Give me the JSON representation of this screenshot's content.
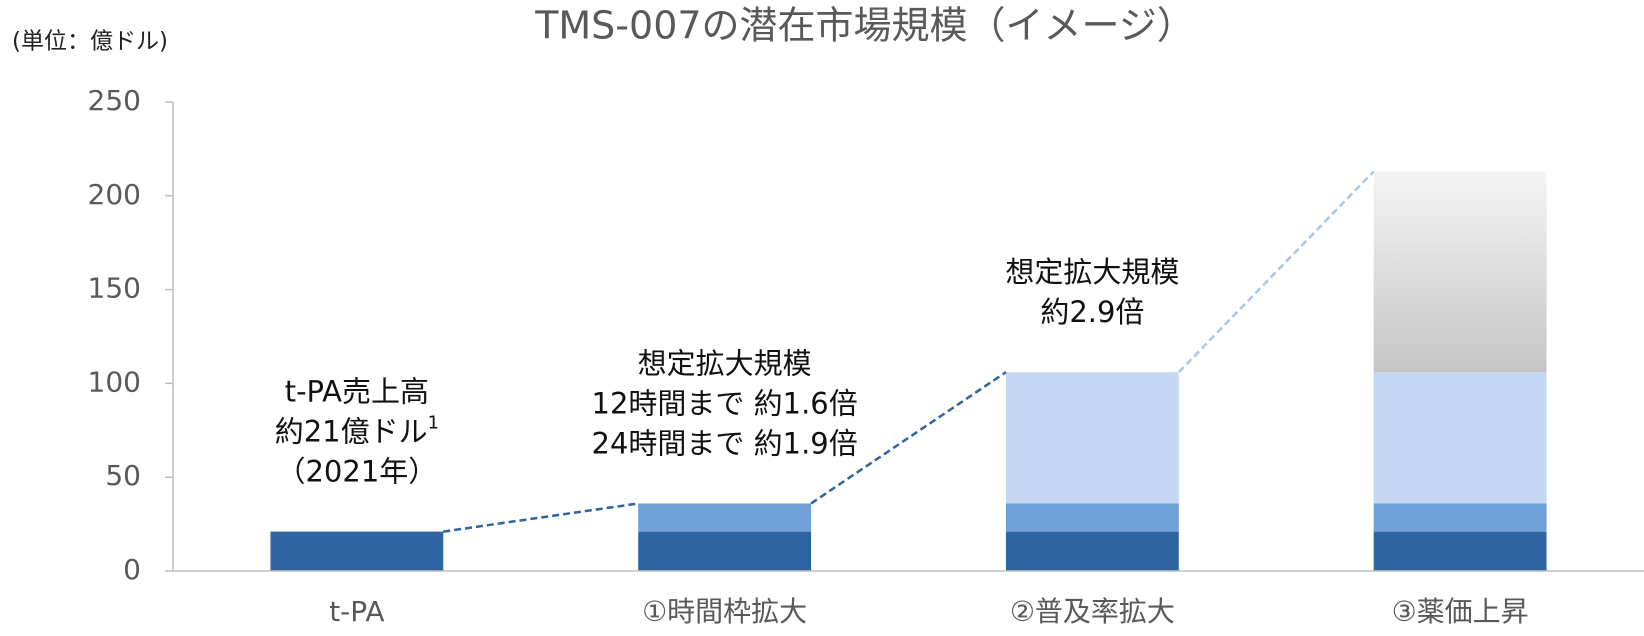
{
  "chart_data": {
    "type": "stacked_bar",
    "title": "TMS-007の潜在市場規模（イメージ）",
    "y_label": "(単位：億ドル)",
    "categories": [
      "t-PA",
      "①時間枠拡大",
      "②普及率拡大",
      "③薬価上昇"
    ],
    "series": [
      {
        "color": "#2e64a0",
        "values": [
          21,
          21,
          21,
          21
        ]
      },
      {
        "color": "#6fa0d8",
        "values": [
          null,
          15,
          15,
          15
        ]
      },
      {
        "color": "#c5d7f2",
        "values": [
          null,
          null,
          70,
          70
        ]
      },
      {
        "color": [
          "#c6c5c5",
          "#f4f4f4"
        ],
        "values": [
          null,
          null,
          null,
          107
        ]
      }
    ],
    "ylim": [
      0,
      250
    ],
    "yticks": [
      0,
      50,
      100,
      150,
      200,
      250
    ],
    "grid": false,
    "annotations": [
      {
        "lines": [
          "t-PA売上高",
          "約21億ドル",
          "（2021年）"
        ],
        "superscript": "1"
      },
      {
        "lines": [
          "想定拡大規模",
          "12時間まで 約1.6倍",
          "24時間まで 約1.9倍"
        ]
      },
      {
        "lines": [
          "想定拡大規模",
          "約2.9倍"
        ]
      }
    ],
    "connector_colors": [
      "#2e64a0",
      "#2e64a0",
      "#a9c6ea"
    ]
  }
}
